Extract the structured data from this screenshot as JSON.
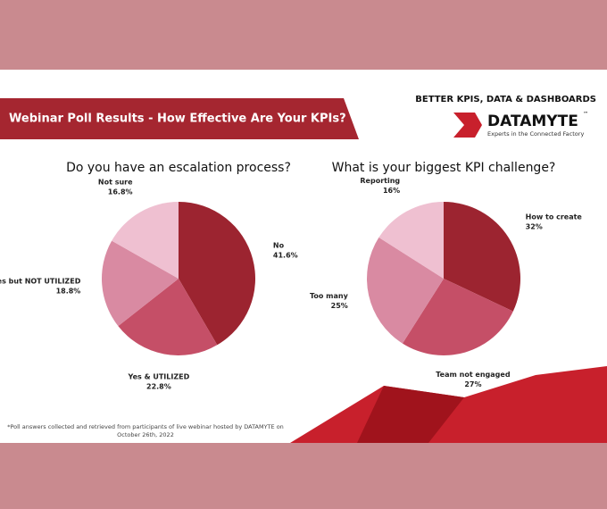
{
  "header": {
    "title": "Webinar Poll Results - How Effective Are Your KPIs?",
    "tagline": "BETTER KPIS, DATA & DASHBOARDS",
    "logo_name": "DATAMYTE",
    "logo_mark": "™",
    "logo_slogan": "Experts in the Connected Factory"
  },
  "footnote": "*Poll answers  collected and retrieved from participants of live webinar  hosted by DATAMYTE on October 26th, 2022",
  "chart_data": [
    {
      "type": "pie",
      "title": "Do you have an escalation process?",
      "categories": [
        "No",
        "Yes & UTILIZED",
        "Yes but NOT UTILIZED",
        "Not sure"
      ],
      "values": [
        41.6,
        22.8,
        18.8,
        16.8
      ],
      "value_labels": [
        "41.6%",
        "22.8%",
        "18.8%",
        "16.8%"
      ],
      "colors": [
        "#9c2430",
        "#c54f67",
        "#d98aa2",
        "#efc0d1"
      ]
    },
    {
      "type": "pie",
      "title": "What is your biggest KPI challenge?",
      "categories": [
        "How to create",
        "Team not engaged",
        "Too many",
        "Reporting"
      ],
      "values": [
        32,
        27,
        25,
        16
      ],
      "value_labels": [
        "32%",
        "27%",
        "25%",
        "16%"
      ],
      "colors": [
        "#9c2430",
        "#c54f67",
        "#d98aa2",
        "#efc0d1"
      ]
    }
  ]
}
